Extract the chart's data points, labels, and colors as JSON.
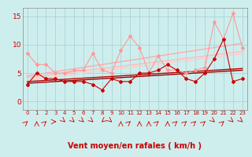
{
  "x": [
    0,
    1,
    2,
    3,
    4,
    5,
    6,
    7,
    8,
    9,
    10,
    11,
    12,
    13,
    14,
    15,
    16,
    17,
    18,
    19,
    20,
    21,
    22,
    23
  ],
  "background_color": "#ceeeed",
  "grid_color": "#aad4d4",
  "xlabel": "Vent moyen/en rafales ( km/h )",
  "yticks": [
    0,
    5,
    10,
    15
  ],
  "ylim": [
    -1.5,
    16.5
  ],
  "xlim": [
    -0.5,
    23.5
  ],
  "lines": [
    {
      "label": "rafales_max",
      "color": "#ff9999",
      "linewidth": 0.8,
      "marker": "D",
      "markersize": 2.0,
      "values": [
        8.5,
        6.5,
        6.5,
        5.0,
        5.0,
        5.5,
        5.5,
        8.5,
        5.5,
        5.0,
        9.0,
        11.5,
        9.5,
        5.0,
        8.0,
        5.5,
        5.5,
        5.0,
        5.5,
        6.0,
        14.0,
        11.0,
        15.5,
        9.5
      ]
    },
    {
      "label": "trend_high1",
      "color": "#ffaaaa",
      "linewidth": 1.0,
      "marker": null,
      "values": [
        4.5,
        4.75,
        5.0,
        5.25,
        5.5,
        5.75,
        6.0,
        6.25,
        6.5,
        6.75,
        7.0,
        7.25,
        7.5,
        7.75,
        8.0,
        8.25,
        8.5,
        8.75,
        9.0,
        9.25,
        9.5,
        9.75,
        10.0,
        10.25
      ]
    },
    {
      "label": "trend_high2",
      "color": "#ffbbbb",
      "linewidth": 1.0,
      "marker": null,
      "values": [
        4.2,
        4.4,
        4.6,
        4.8,
        5.0,
        5.2,
        5.4,
        5.6,
        5.8,
        6.0,
        6.2,
        6.4,
        6.6,
        6.8,
        7.0,
        7.2,
        7.4,
        7.6,
        7.8,
        8.0,
        8.2,
        8.4,
        8.6,
        8.8
      ]
    },
    {
      "label": "trend_mid",
      "color": "#ffcccc",
      "linewidth": 1.0,
      "marker": null,
      "values": [
        3.8,
        4.0,
        4.2,
        4.4,
        4.6,
        4.8,
        5.0,
        5.2,
        5.4,
        5.6,
        5.8,
        6.0,
        6.2,
        6.4,
        6.6,
        6.8,
        7.0,
        7.2,
        7.4,
        7.6,
        7.8,
        8.0,
        8.2,
        8.4
      ]
    },
    {
      "label": "vent_moyen",
      "color": "#cc0000",
      "linewidth": 0.8,
      "marker": "D",
      "markersize": 2.0,
      "values": [
        3.0,
        5.0,
        4.0,
        4.0,
        3.5,
        3.5,
        3.5,
        3.0,
        2.0,
        4.0,
        3.5,
        3.5,
        5.0,
        5.0,
        5.5,
        6.5,
        5.5,
        4.0,
        3.5,
        5.0,
        7.5,
        11.0,
        3.5,
        4.0
      ]
    },
    {
      "label": "trend_low1",
      "color": "#bb0000",
      "linewidth": 1.0,
      "marker": null,
      "values": [
        3.5,
        3.6,
        3.7,
        3.8,
        3.9,
        4.0,
        4.1,
        4.2,
        4.3,
        4.4,
        4.5,
        4.6,
        4.7,
        4.8,
        4.9,
        5.0,
        5.1,
        5.2,
        5.3,
        5.4,
        5.5,
        5.6,
        5.7,
        5.8
      ]
    },
    {
      "label": "trend_low2",
      "color": "#990000",
      "linewidth": 1.0,
      "marker": null,
      "values": [
        3.2,
        3.3,
        3.4,
        3.5,
        3.6,
        3.7,
        3.8,
        3.9,
        4.0,
        4.1,
        4.2,
        4.3,
        4.4,
        4.5,
        4.6,
        4.7,
        4.8,
        4.9,
        5.0,
        5.1,
        5.2,
        5.3,
        5.4,
        5.5
      ]
    }
  ],
  "arrow_color": "#cc0000",
  "arrow_angles_deg": [
    45,
    0,
    45,
    90,
    135,
    135,
    135,
    135,
    225,
    135,
    0,
    45,
    0,
    0,
    45,
    0,
    45,
    45,
    45,
    45,
    135,
    45,
    135,
    135
  ]
}
